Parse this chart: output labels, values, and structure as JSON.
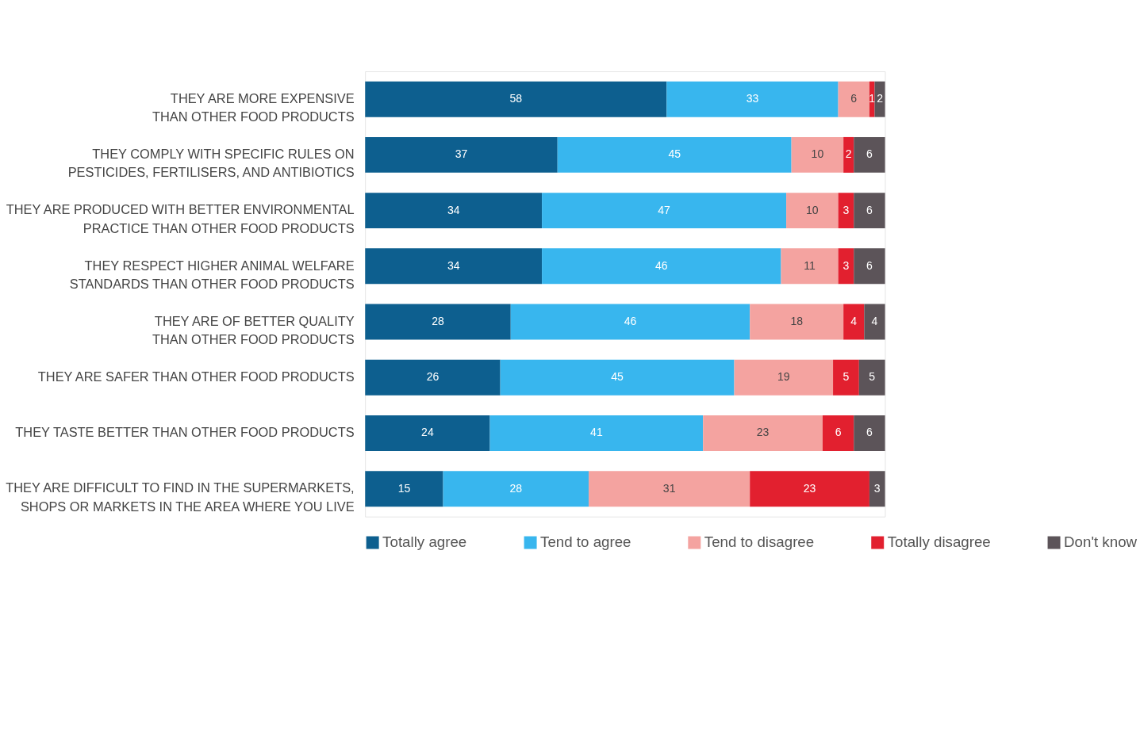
{
  "chart_data": {
    "type": "bar",
    "orientation": "horizontal",
    "stacked": true,
    "data_labels": true,
    "legend": "bottom",
    "categories": [
      "THEY ARE MORE EXPENSIVE\nTHAN OTHER FOOD PRODUCTS",
      "THEY COMPLY WITH SPECIFIC RULES ON\nPESTICIDES, FERTILISERS, AND ANTIBIOTICS",
      "THEY ARE PRODUCED WITH BETTER ENVIRONMENTAL\nPRACTICE THAN OTHER FOOD PRODUCTS",
      "THEY RESPECT HIGHER ANIMAL WELFARE\nSTANDARDS THAN OTHER FOOD PRODUCTS",
      "THEY ARE OF BETTER QUALITY\nTHAN OTHER FOOD PRODUCTS",
      "THEY ARE SAFER THAN OTHER FOOD PRODUCTS",
      "THEY TASTE BETTER THAN OTHER FOOD PRODUCTS",
      "THEY ARE DIFFICULT TO FIND IN THE SUPERMARKETS,\nSHOPS OR MARKETS IN THE AREA WHERE YOU LIVE"
    ],
    "series": [
      {
        "name": "Totally agree",
        "color": "#0d5f8f",
        "values": [
          58,
          37,
          34,
          34,
          28,
          26,
          24,
          15
        ]
      },
      {
        "name": "Tend to agree",
        "color": "#38b6ee",
        "values": [
          33,
          45,
          47,
          46,
          46,
          45,
          41,
          28
        ]
      },
      {
        "name": "Tend to disagree",
        "color": "#f4a3a0",
        "values": [
          6,
          10,
          10,
          11,
          18,
          19,
          23,
          31
        ]
      },
      {
        "name": "Totally disagree",
        "color": "#e2202f",
        "values": [
          1,
          2,
          3,
          3,
          4,
          5,
          6,
          23
        ]
      },
      {
        "name": "Don't know",
        "color": "#5c5459",
        "values": [
          2,
          6,
          6,
          6,
          4,
          5,
          6,
          3
        ]
      }
    ]
  }
}
